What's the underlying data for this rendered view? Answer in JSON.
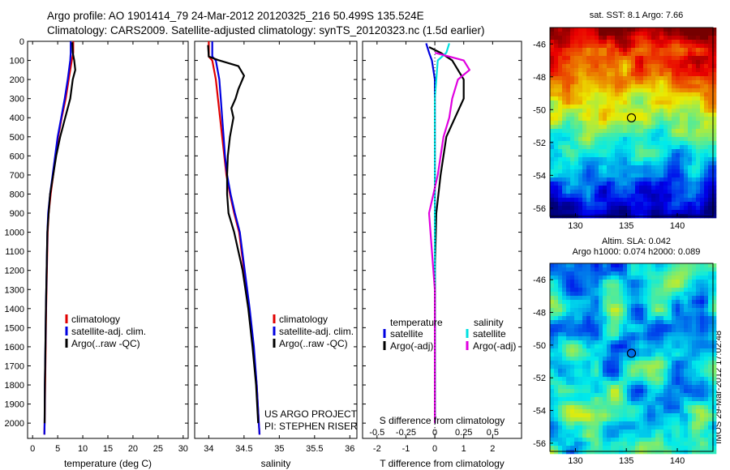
{
  "header": {
    "line1": "Argo profile: AO 1901414_79 24-Mar-2012 20120325_216 50.499S 135.524E",
    "line2": "Climatology: CARS2009. Satellite-adjusted climatology: synTS_20120323.nc (1.5d earlier)"
  },
  "side_stamp": "IMOS 29-Mar-2012 17:02:48",
  "colors": {
    "climatology": "#e00000",
    "satellite": "#0000e0",
    "argo": "#000000",
    "cyan": "#00e0e0",
    "magenta": "#e000e0"
  },
  "chart_data": [
    {
      "type": "line",
      "name": "temperature-panel",
      "xlabel": "temperature (deg C)",
      "ylabel": "",
      "xlim": [
        -1,
        31
      ],
      "ylim": [
        2080,
        0
      ],
      "xticks": [
        0,
        5,
        10,
        15,
        20,
        25,
        30
      ],
      "yticks": [
        0,
        100,
        200,
        300,
        400,
        500,
        600,
        700,
        800,
        900,
        1000,
        1100,
        1200,
        1300,
        1400,
        1500,
        1600,
        1700,
        1800,
        1900,
        2000
      ],
      "legend": [
        "climatology",
        "satellite-adj. clim.",
        "Argo(..raw -QC)"
      ],
      "series": [
        {
          "name": "climatology",
          "color": "#e00000",
          "points": [
            [
              8.1,
              0
            ],
            [
              8.1,
              60
            ],
            [
              7.8,
              100
            ],
            [
              7.2,
              200
            ],
            [
              6.6,
              300
            ],
            [
              5.8,
              400
            ],
            [
              5.1,
              500
            ],
            [
              4.6,
              600
            ],
            [
              4.1,
              700
            ],
            [
              3.6,
              800
            ],
            [
              3.2,
              900
            ],
            [
              3.0,
              1000
            ],
            [
              2.85,
              1200
            ],
            [
              2.7,
              1400
            ],
            [
              2.6,
              1600
            ],
            [
              2.5,
              1800
            ],
            [
              2.4,
              2000
            ],
            [
              2.35,
              2060
            ]
          ]
        },
        {
          "name": "satellite-adj. clim.",
          "color": "#0000e0",
          "points": [
            [
              7.6,
              0
            ],
            [
              7.6,
              60
            ],
            [
              7.5,
              100
            ],
            [
              7.0,
              200
            ],
            [
              6.4,
              300
            ],
            [
              5.7,
              400
            ],
            [
              5.0,
              500
            ],
            [
              4.5,
              600
            ],
            [
              4.0,
              700
            ],
            [
              3.5,
              800
            ],
            [
              3.1,
              900
            ],
            [
              2.95,
              1000
            ],
            [
              2.8,
              1200
            ],
            [
              2.65,
              1400
            ],
            [
              2.55,
              1600
            ],
            [
              2.45,
              1800
            ],
            [
              2.4,
              2000
            ],
            [
              2.35,
              2060
            ]
          ]
        },
        {
          "name": "Argo(..raw -QC)",
          "color": "#000000",
          "points": [
            [
              7.9,
              5
            ],
            [
              8.0,
              60
            ],
            [
              8.3,
              100
            ],
            [
              8.5,
              150
            ],
            [
              8.0,
              200
            ],
            [
              7.5,
              300
            ],
            [
              6.5,
              400
            ],
            [
              5.5,
              500
            ],
            [
              4.7,
              600
            ],
            [
              4.1,
              700
            ],
            [
              3.5,
              800
            ],
            [
              3.2,
              900
            ],
            [
              2.95,
              1000
            ],
            [
              2.8,
              1200
            ],
            [
              2.65,
              1400
            ],
            [
              2.55,
              1600
            ],
            [
              2.45,
              1800
            ],
            [
              2.4,
              2000
            ]
          ]
        }
      ]
    },
    {
      "type": "line",
      "name": "salinity-panel",
      "xlabel": "salinity",
      "ylabel": "",
      "xlim": [
        33.8,
        36.1
      ],
      "ylim": [
        2080,
        0
      ],
      "xticks": [
        34,
        34.5,
        35,
        35.5,
        36
      ],
      "legend": [
        "climatology",
        "satellite-adj. clim.",
        "Argo(..raw -QC)"
      ],
      "annotations": [
        "US ARGO PROJECT",
        "PI: STEPHEN RISER"
      ],
      "series": [
        {
          "name": "climatology",
          "color": "#e00000",
          "points": [
            [
              34.0,
              0
            ],
            [
              34.0,
              80
            ],
            [
              34.05,
              100
            ],
            [
              34.1,
              200
            ],
            [
              34.13,
              300
            ],
            [
              34.16,
              400
            ],
            [
              34.19,
              500
            ],
            [
              34.22,
              600
            ],
            [
              34.25,
              700
            ],
            [
              34.3,
              800
            ],
            [
              34.36,
              900
            ],
            [
              34.43,
              1000
            ],
            [
              34.5,
              1200
            ],
            [
              34.57,
              1400
            ],
            [
              34.63,
              1600
            ],
            [
              34.68,
              1800
            ],
            [
              34.71,
              2000
            ],
            [
              34.72,
              2060
            ]
          ]
        },
        {
          "name": "satellite-adj. clim.",
          "color": "#0000e0",
          "points": [
            [
              34.05,
              0
            ],
            [
              34.05,
              80
            ],
            [
              34.1,
              100
            ],
            [
              34.15,
              200
            ],
            [
              34.17,
              300
            ],
            [
              34.19,
              400
            ],
            [
              34.21,
              500
            ],
            [
              34.23,
              600
            ],
            [
              34.26,
              700
            ],
            [
              34.31,
              800
            ],
            [
              34.37,
              900
            ],
            [
              34.44,
              1000
            ],
            [
              34.51,
              1200
            ],
            [
              34.58,
              1400
            ],
            [
              34.64,
              1600
            ],
            [
              34.68,
              1800
            ],
            [
              34.71,
              2000
            ],
            [
              34.72,
              2060
            ]
          ]
        },
        {
          "name": "Argo(..raw -QC)",
          "color": "#000000",
          "points": [
            [
              33.99,
              20
            ],
            [
              34.0,
              80
            ],
            [
              34.15,
              100
            ],
            [
              34.42,
              130
            ],
            [
              34.5,
              180
            ],
            [
              34.42,
              250
            ],
            [
              34.38,
              300
            ],
            [
              34.32,
              350
            ],
            [
              34.35,
              400
            ],
            [
              34.3,
              500
            ],
            [
              34.27,
              600
            ],
            [
              34.26,
              700
            ],
            [
              34.26,
              800
            ],
            [
              34.28,
              900
            ],
            [
              34.36,
              1000
            ],
            [
              34.48,
              1200
            ],
            [
              34.56,
              1400
            ],
            [
              34.62,
              1600
            ],
            [
              34.67,
              1800
            ],
            [
              34.7,
              2000
            ]
          ]
        }
      ]
    },
    {
      "type": "line",
      "name": "difference-panel",
      "xlabel": "T difference from climatology",
      "xlabel_top": "S difference from climatology",
      "xlim": [
        -2.5,
        3.0
      ],
      "ylim": [
        2080,
        0
      ],
      "xticks": [
        -2,
        -1,
        0,
        1,
        2
      ],
      "top_tick_labels": [
        "-0.5",
        "-0.25",
        "0",
        "0.25",
        "0.5"
      ],
      "legend_titles": [
        "temperature",
        "salinity"
      ],
      "legend": [
        "satellite",
        "Argo(-adj)",
        "satellite",
        "Argo(-adj)"
      ],
      "series": [
        {
          "name": "temperature satellite",
          "color": "#0000e0",
          "points": [
            [
              -0.3,
              10
            ],
            [
              -0.2,
              60
            ],
            [
              -0.1,
              100
            ],
            [
              0.0,
              200
            ],
            [
              0.0,
              400
            ],
            [
              0.0,
              800
            ],
            [
              0.0,
              1200
            ],
            [
              0.0,
              2000
            ]
          ]
        },
        {
          "name": "temperature Argo(-adj)",
          "color": "#000000",
          "points": [
            [
              -0.2,
              30
            ],
            [
              0.2,
              60
            ],
            [
              0.6,
              100
            ],
            [
              1.0,
              200
            ],
            [
              1.0,
              300
            ],
            [
              0.7,
              400
            ],
            [
              0.4,
              500
            ],
            [
              0.2,
              700
            ],
            [
              0.05,
              900
            ],
            [
              0.0,
              1200
            ],
            [
              0.0,
              2000
            ]
          ]
        },
        {
          "name": "salinity satellite",
          "color": "#00e0e0",
          "points": [
            [
              0.5,
              10
            ],
            [
              0.4,
              60
            ],
            [
              0.1,
              100
            ],
            [
              0.0,
              300
            ],
            [
              0.0,
              800
            ],
            [
              0.0,
              1200
            ],
            [
              0.0,
              2000
            ]
          ]
        },
        {
          "name": "salinity Argo(-adj)",
          "color": "#e000e0",
          "points": [
            [
              0.0,
              60
            ],
            [
              1.0,
              100
            ],
            [
              1.2,
              150
            ],
            [
              0.8,
              200
            ],
            [
              0.6,
              300
            ],
            [
              0.5,
              400
            ],
            [
              0.3,
              500
            ],
            [
              0.1,
              700
            ],
            [
              -0.2,
              900
            ],
            [
              -0.1,
              1100
            ],
            [
              0.0,
              1300
            ],
            [
              0.0,
              2000
            ]
          ]
        }
      ]
    },
    {
      "type": "heatmap",
      "name": "sst-map",
      "title": "sat. SST: 8.1  Argo: 7.66",
      "xlim": [
        127.5,
        143.5
      ],
      "ylim": [
        -56.5,
        -45
      ],
      "xticks": [
        130,
        135,
        140
      ],
      "yticks": [
        -46,
        -48,
        -50,
        -52,
        -54,
        -56
      ],
      "marker": {
        "lon": 135.5,
        "lat": -50.5
      }
    },
    {
      "type": "heatmap",
      "name": "sla-map",
      "title": "Altim. SLA: 0.042",
      "subtitle": "Argo h1000: 0.074 h2000: 0.089",
      "xlim": [
        127.5,
        143.5
      ],
      "ylim": [
        -56.5,
        -45
      ],
      "xticks": [
        130,
        135,
        140
      ],
      "yticks": [
        -46,
        -48,
        -50,
        -52,
        -54,
        -56
      ],
      "marker": {
        "lon": 135.5,
        "lat": -50.5
      }
    }
  ]
}
